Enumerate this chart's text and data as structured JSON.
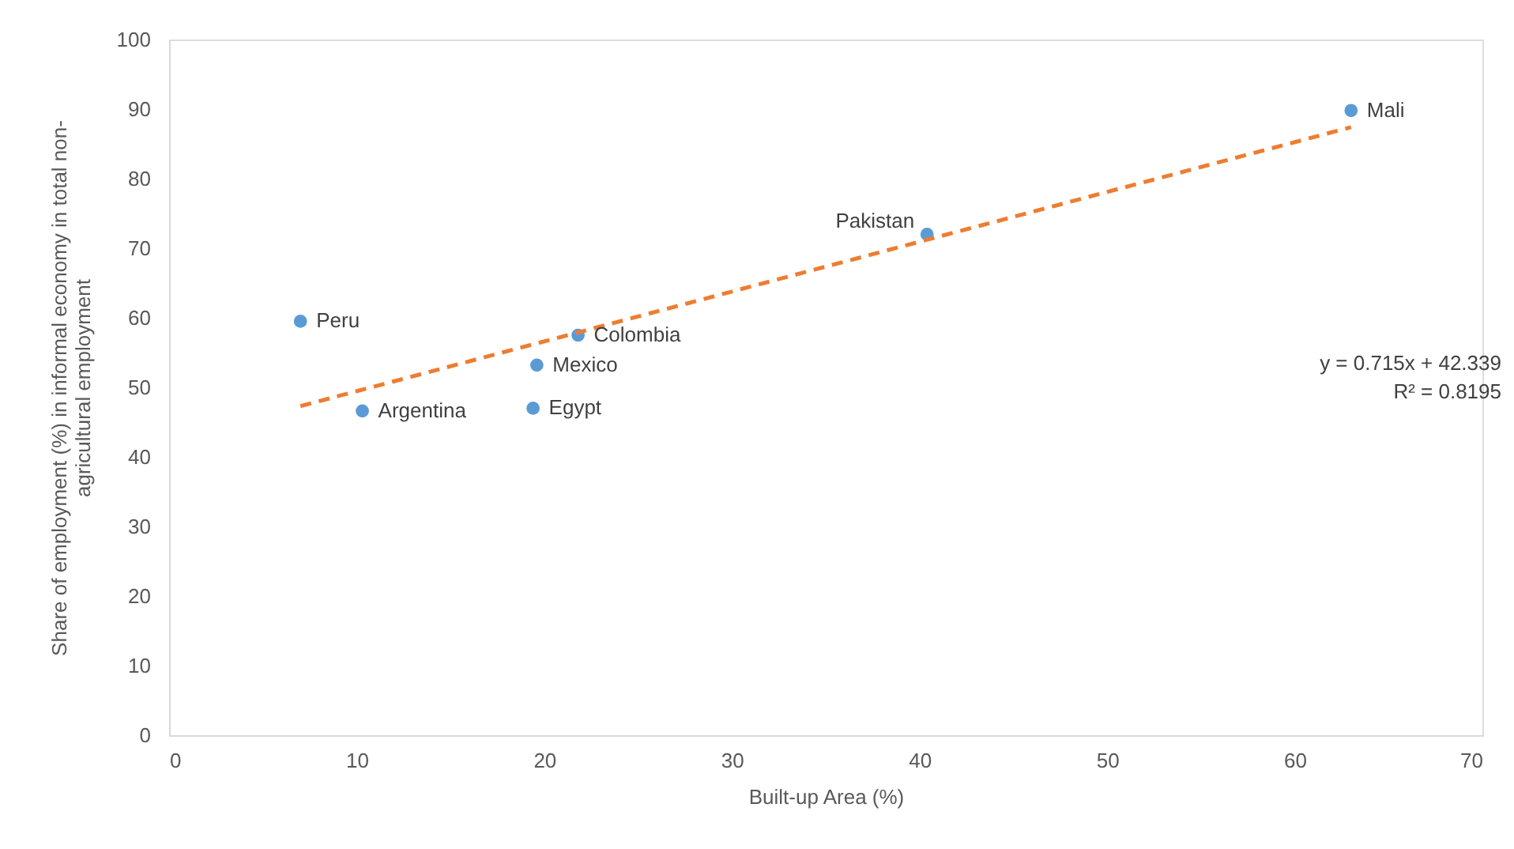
{
  "chart_data": {
    "type": "scatter",
    "xlabel": "Built-up Area (%)",
    "ylabel": "Share of employment (%) in informal economy in total non-agricultural employment",
    "xlim": [
      0,
      70
    ],
    "xticks": [
      0,
      10,
      20,
      30,
      40,
      50,
      60,
      70
    ],
    "ylim": [
      0,
      100
    ],
    "yticks": [
      0,
      10,
      20,
      30,
      40,
      50,
      60,
      70,
      80,
      90,
      100
    ],
    "grid": false,
    "marker": "circle",
    "series": [
      {
        "color": "#5b9bd5",
        "x": [
          7.0,
          10.3,
          21.8,
          19.6,
          19.4,
          40.4,
          63.0
        ],
        "values": [
          59.5,
          46.6,
          57.5,
          53.2,
          47.0,
          72.0,
          89.8
        ]
      },
      {
        "type": "line",
        "color": "#ed7d31",
        "line_style": "dashed",
        "marker": "none",
        "x": [
          7.0,
          63.0
        ],
        "values": [
          47.3,
          87.4
        ]
      }
    ],
    "annotations": [
      {
        "text": "Peru",
        "x": 7.0,
        "y": 59.5
      },
      {
        "text": "Argentina",
        "x": 10.3,
        "y": 46.6
      },
      {
        "text": "Colombia",
        "x": 21.8,
        "y": 57.5
      },
      {
        "text": "Mexico",
        "x": 19.6,
        "y": 53.2
      },
      {
        "text": "Egypt",
        "x": 19.4,
        "y": 47.0
      },
      {
        "text": "Pakistan",
        "x": 40.4,
        "y": 72.0
      },
      {
        "text": "Mali",
        "x": 63.0,
        "y": 89.8
      },
      "y = 0.715x + 42.339",
      "R² = 0.8195"
    ]
  }
}
